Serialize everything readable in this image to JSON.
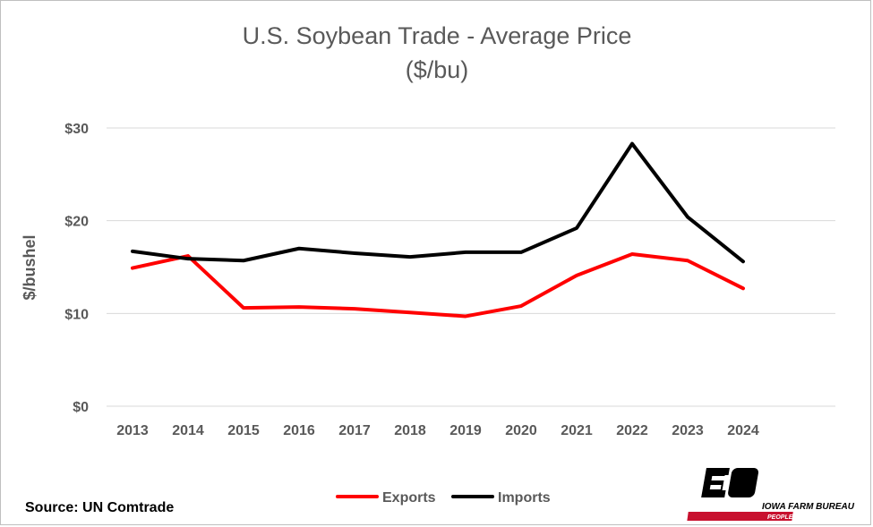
{
  "chart_data": {
    "type": "line",
    "title": "U.S. Soybean Trade - Average Price",
    "subtitle": "($/bu)",
    "ylabel": "$/bushel",
    "xlabel": "",
    "categories": [
      "2013",
      "2014",
      "2015",
      "2016",
      "2017",
      "2018",
      "2019",
      "2020",
      "2021",
      "2022",
      "2023",
      "2024"
    ],
    "ylim": [
      0,
      30
    ],
    "yticks": [
      0,
      10,
      20,
      30
    ],
    "ytick_labels": [
      "$0",
      "$10",
      "$20",
      "$30"
    ],
    "grid": true,
    "legend_position": "bottom",
    "series": [
      {
        "name": "Exports",
        "color": "#ff0000",
        "values": [
          14.9,
          16.2,
          10.6,
          10.7,
          10.5,
          10.1,
          9.7,
          10.8,
          14.1,
          16.4,
          15.7,
          12.7
        ]
      },
      {
        "name": "Imports",
        "color": "#000000",
        "values": [
          16.7,
          15.9,
          15.7,
          17.0,
          16.5,
          16.1,
          16.6,
          16.6,
          19.2,
          28.3,
          20.4,
          15.6
        ]
      }
    ]
  },
  "source": "Source: UN Comtrade",
  "logo": {
    "name": "IOWA FARM BUREAU",
    "tagline": "PEOPLE. PROGRESS. PRIDE.",
    "icon": "farm-bureau-fb-logo-icon",
    "brand_red": "#c8102e"
  }
}
